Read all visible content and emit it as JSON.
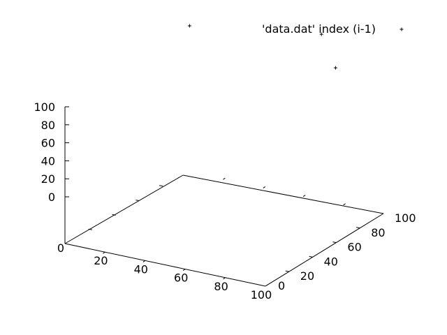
{
  "chart_data": {
    "type": "scatter",
    "dimensions": 3,
    "title": "",
    "xlabel": "",
    "ylabel": "",
    "zlabel": "",
    "xlim": [
      0,
      100
    ],
    "ylim": [
      0,
      100
    ],
    "zlim": [
      0,
      100
    ],
    "x_ticks": [
      0,
      20,
      40,
      60,
      80,
      100
    ],
    "x_tick_labels": [
      "0",
      "20",
      "40",
      "60",
      "80",
      "100"
    ],
    "y_ticks": [
      0,
      20,
      40,
      60,
      80,
      100
    ],
    "y_tick_labels": [
      "0",
      "20",
      "40",
      "60",
      "80",
      "100"
    ],
    "z_ticks": [
      0,
      20,
      40,
      60,
      80,
      100
    ],
    "z_tick_labels": [
      "0",
      "20",
      "40",
      "60",
      "80",
      "100"
    ],
    "grid": false,
    "legend_position": "top-right",
    "series": [
      {
        "name": "'data.dat' index (i-1)",
        "color": "#000000",
        "marker": "plus",
        "points": [
          {
            "x": 18,
            "y": 75,
            "z": 100
          },
          {
            "x": 72,
            "y": 95,
            "z": 100
          },
          {
            "x": 82,
            "y": 90,
            "z": 85
          }
        ]
      }
    ]
  }
}
